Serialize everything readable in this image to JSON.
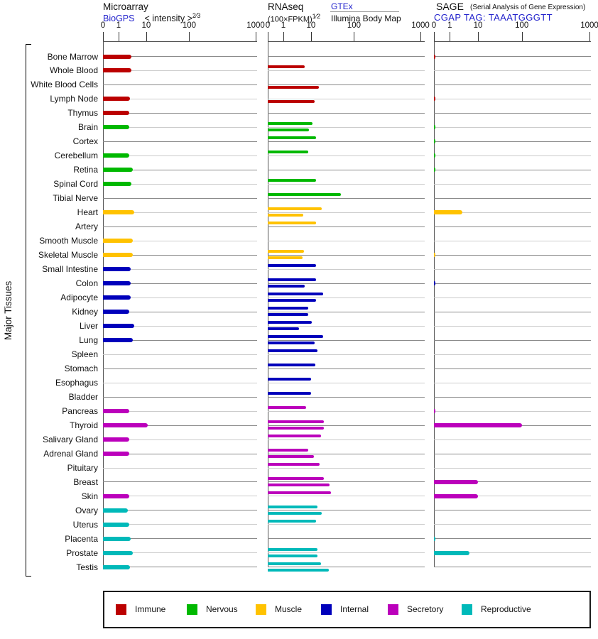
{
  "header": {
    "microarray": {
      "title": "Microarray",
      "link": "BioGPS",
      "formula": "< intensity >",
      "formula_sup": "2⁄3"
    },
    "rnaseq": {
      "title": "RNAseq",
      "formula": "(100×FPKM)",
      "formula_sup": "1⁄2",
      "link": "GTEx",
      "sublink": "Illumina Body Map"
    },
    "sage": {
      "title": "SAGE",
      "note": "(Serial Analysis of Gene Expression)",
      "link": "CGAP TAG: TAAATGGGTT"
    }
  },
  "side_label": "Major Tissues",
  "category_colors": {
    "immune": "#bb0000",
    "nervous": "#00b800",
    "muscle": "#ffc200",
    "internal": "#0000bb",
    "secretory": "#bb00bb",
    "reproductive": "#00b9b9"
  },
  "legend": {
    "items": [
      {
        "label": "Immune",
        "category": "immune"
      },
      {
        "label": "Nervous",
        "category": "nervous"
      },
      {
        "label": "Muscle",
        "category": "muscle"
      },
      {
        "label": "Internal",
        "category": "internal"
      },
      {
        "label": "Secretory",
        "category": "secretory"
      },
      {
        "label": "Reproductive",
        "category": "reproductive"
      }
    ]
  },
  "chart_data": {
    "type": "bar",
    "orientation": "horizontal",
    "scale": "log-like, ticks 0/1/10/100/1000",
    "row_axis_label": "Major Tissues",
    "panels": [
      {
        "id": "microarray",
        "name": "Microarray",
        "source": "BioGPS",
        "unit": "< intensity >^(2/3)",
        "ticks": [
          "0",
          "1",
          "10",
          "100",
          "1000"
        ]
      },
      {
        "id": "rnaseq",
        "name": "RNAseq",
        "unit": "(100×FPKM)^(1/2)",
        "sources": [
          "GTEx",
          "Illumina Body Map"
        ],
        "ticks": [
          "0",
          "1",
          "10",
          "100",
          "1000"
        ]
      },
      {
        "id": "sage",
        "name": "SAGE",
        "note": "(Serial Analysis of Gene Expression)",
        "source": "CGAP TAG: TAAATGGGTT",
        "ticks": [
          "0",
          "1",
          "10",
          "100",
          "1000"
        ]
      }
    ],
    "tissues": [
      {
        "name": "Bone Marrow",
        "category": "immune",
        "microarray": 3,
        "gtex": null,
        "illumina": null,
        "sage": 0.1
      },
      {
        "name": "Whole Blood",
        "category": "immune",
        "microarray": 3,
        "gtex": 6,
        "illumina": null,
        "sage": null
      },
      {
        "name": "White Blood Cells",
        "category": "immune",
        "microarray": null,
        "gtex": null,
        "illumina": 15,
        "sage": null
      },
      {
        "name": "Lymph Node",
        "category": "immune",
        "microarray": 2.6,
        "gtex": null,
        "illumina": 12,
        "sage": 0.1
      },
      {
        "name": "Thymus",
        "category": "immune",
        "microarray": 2.5,
        "gtex": null,
        "illumina": null,
        "sage": null
      },
      {
        "name": "Brain",
        "category": "nervous",
        "microarray": 2.5,
        "gtex": 11,
        "illumina": 8.7,
        "sage": 0.1
      },
      {
        "name": "Cortex",
        "category": "nervous",
        "microarray": null,
        "gtex": 13,
        "illumina": null,
        "sage": 0.1
      },
      {
        "name": "Cerebellum",
        "category": "nervous",
        "microarray": 2.5,
        "gtex": 8.2,
        "illumina": null,
        "sage": 0.1
      },
      {
        "name": "Retina",
        "category": "nervous",
        "microarray": 3.3,
        "gtex": null,
        "illumina": null,
        "sage": 0.1
      },
      {
        "name": "Spinal Cord",
        "category": "nervous",
        "microarray": 3,
        "gtex": 13,
        "illumina": null,
        "sage": null
      },
      {
        "name": "Tibial Nerve",
        "category": "nervous",
        "microarray": null,
        "gtex": 50,
        "illumina": null,
        "sage": null
      },
      {
        "name": "Heart",
        "category": "muscle",
        "microarray": 3.7,
        "gtex": 18,
        "illumina": 5.4,
        "sage": 2.8
      },
      {
        "name": "Artery",
        "category": "muscle",
        "microarray": null,
        "gtex": 13,
        "illumina": null,
        "sage": null
      },
      {
        "name": "Smooth Muscle",
        "category": "muscle",
        "microarray": 3.2,
        "gtex": null,
        "illumina": null,
        "sage": null
      },
      {
        "name": "Skeletal Muscle",
        "category": "muscle",
        "microarray": 3.3,
        "gtex": 5.7,
        "illumina": 5.1,
        "sage": 0.1
      },
      {
        "name": "Small Intestine",
        "category": "internal",
        "microarray": 2.8,
        "gtex": 13,
        "illumina": null,
        "sage": null
      },
      {
        "name": "Colon",
        "category": "internal",
        "microarray": 2.8,
        "gtex": 13,
        "illumina": 5.8,
        "sage": 0.1
      },
      {
        "name": "Adipocyte",
        "category": "internal",
        "microarray": 2.8,
        "gtex": 19.5,
        "illumina": 13,
        "sage": null
      },
      {
        "name": "Kidney",
        "category": "internal",
        "microarray": 2.5,
        "gtex": 8,
        "illumina": 8,
        "sage": null
      },
      {
        "name": "Liver",
        "category": "internal",
        "microarray": 3.7,
        "gtex": 10.6,
        "illumina": 3.7,
        "sage": null
      },
      {
        "name": "Lung",
        "category": "internal",
        "microarray": 3.2,
        "gtex": 19.5,
        "illumina": 12,
        "sage": null
      },
      {
        "name": "Spleen",
        "category": "internal",
        "microarray": null,
        "gtex": 14,
        "illumina": null,
        "sage": null
      },
      {
        "name": "Stomach",
        "category": "internal",
        "microarray": null,
        "gtex": 12.4,
        "illumina": null,
        "sage": null
      },
      {
        "name": "Esophagus",
        "category": "internal",
        "microarray": null,
        "gtex": 10,
        "illumina": null,
        "sage": null
      },
      {
        "name": "Bladder",
        "category": "internal",
        "microarray": null,
        "gtex": 10,
        "illumina": null,
        "sage": null
      },
      {
        "name": "Pancreas",
        "category": "secretory",
        "microarray": 2.5,
        "gtex": 6.5,
        "illumina": null,
        "sage": 0.1
      },
      {
        "name": "Thyroid",
        "category": "secretory",
        "microarray": 11,
        "gtex": 20,
        "illumina": 20,
        "sage": 100
      },
      {
        "name": "Salivary Gland",
        "category": "secretory",
        "microarray": 2.5,
        "gtex": 17,
        "illumina": null,
        "sage": null
      },
      {
        "name": "Adrenal Gland",
        "category": "secretory",
        "microarray": 2.5,
        "gtex": 8,
        "illumina": 11.6,
        "sage": null
      },
      {
        "name": "Pituitary",
        "category": "secretory",
        "microarray": null,
        "gtex": 16,
        "illumina": null,
        "sage": null
      },
      {
        "name": "Breast",
        "category": "secretory",
        "microarray": null,
        "gtex": 20,
        "illumina": 27,
        "sage": 10
      },
      {
        "name": "Skin",
        "category": "secretory",
        "microarray": 2.5,
        "gtex": 29,
        "illumina": null,
        "sage": 10
      },
      {
        "name": "Ovary",
        "category": "reproductive",
        "microarray": 2.2,
        "gtex": 14,
        "illumina": 18,
        "sage": null
      },
      {
        "name": "Uterus",
        "category": "reproductive",
        "microarray": 2.5,
        "gtex": 13,
        "illumina": null,
        "sage": null
      },
      {
        "name": "Placenta",
        "category": "reproductive",
        "microarray": 2.8,
        "gtex": null,
        "illumina": null,
        "sage": 0.1
      },
      {
        "name": "Prostate",
        "category": "reproductive",
        "microarray": 3.2,
        "gtex": 14,
        "illumina": 14,
        "sage": 5
      },
      {
        "name": "Testis",
        "category": "reproductive",
        "microarray": 2.6,
        "gtex": 17,
        "illumina": 26,
        "sage": null
      }
    ]
  }
}
